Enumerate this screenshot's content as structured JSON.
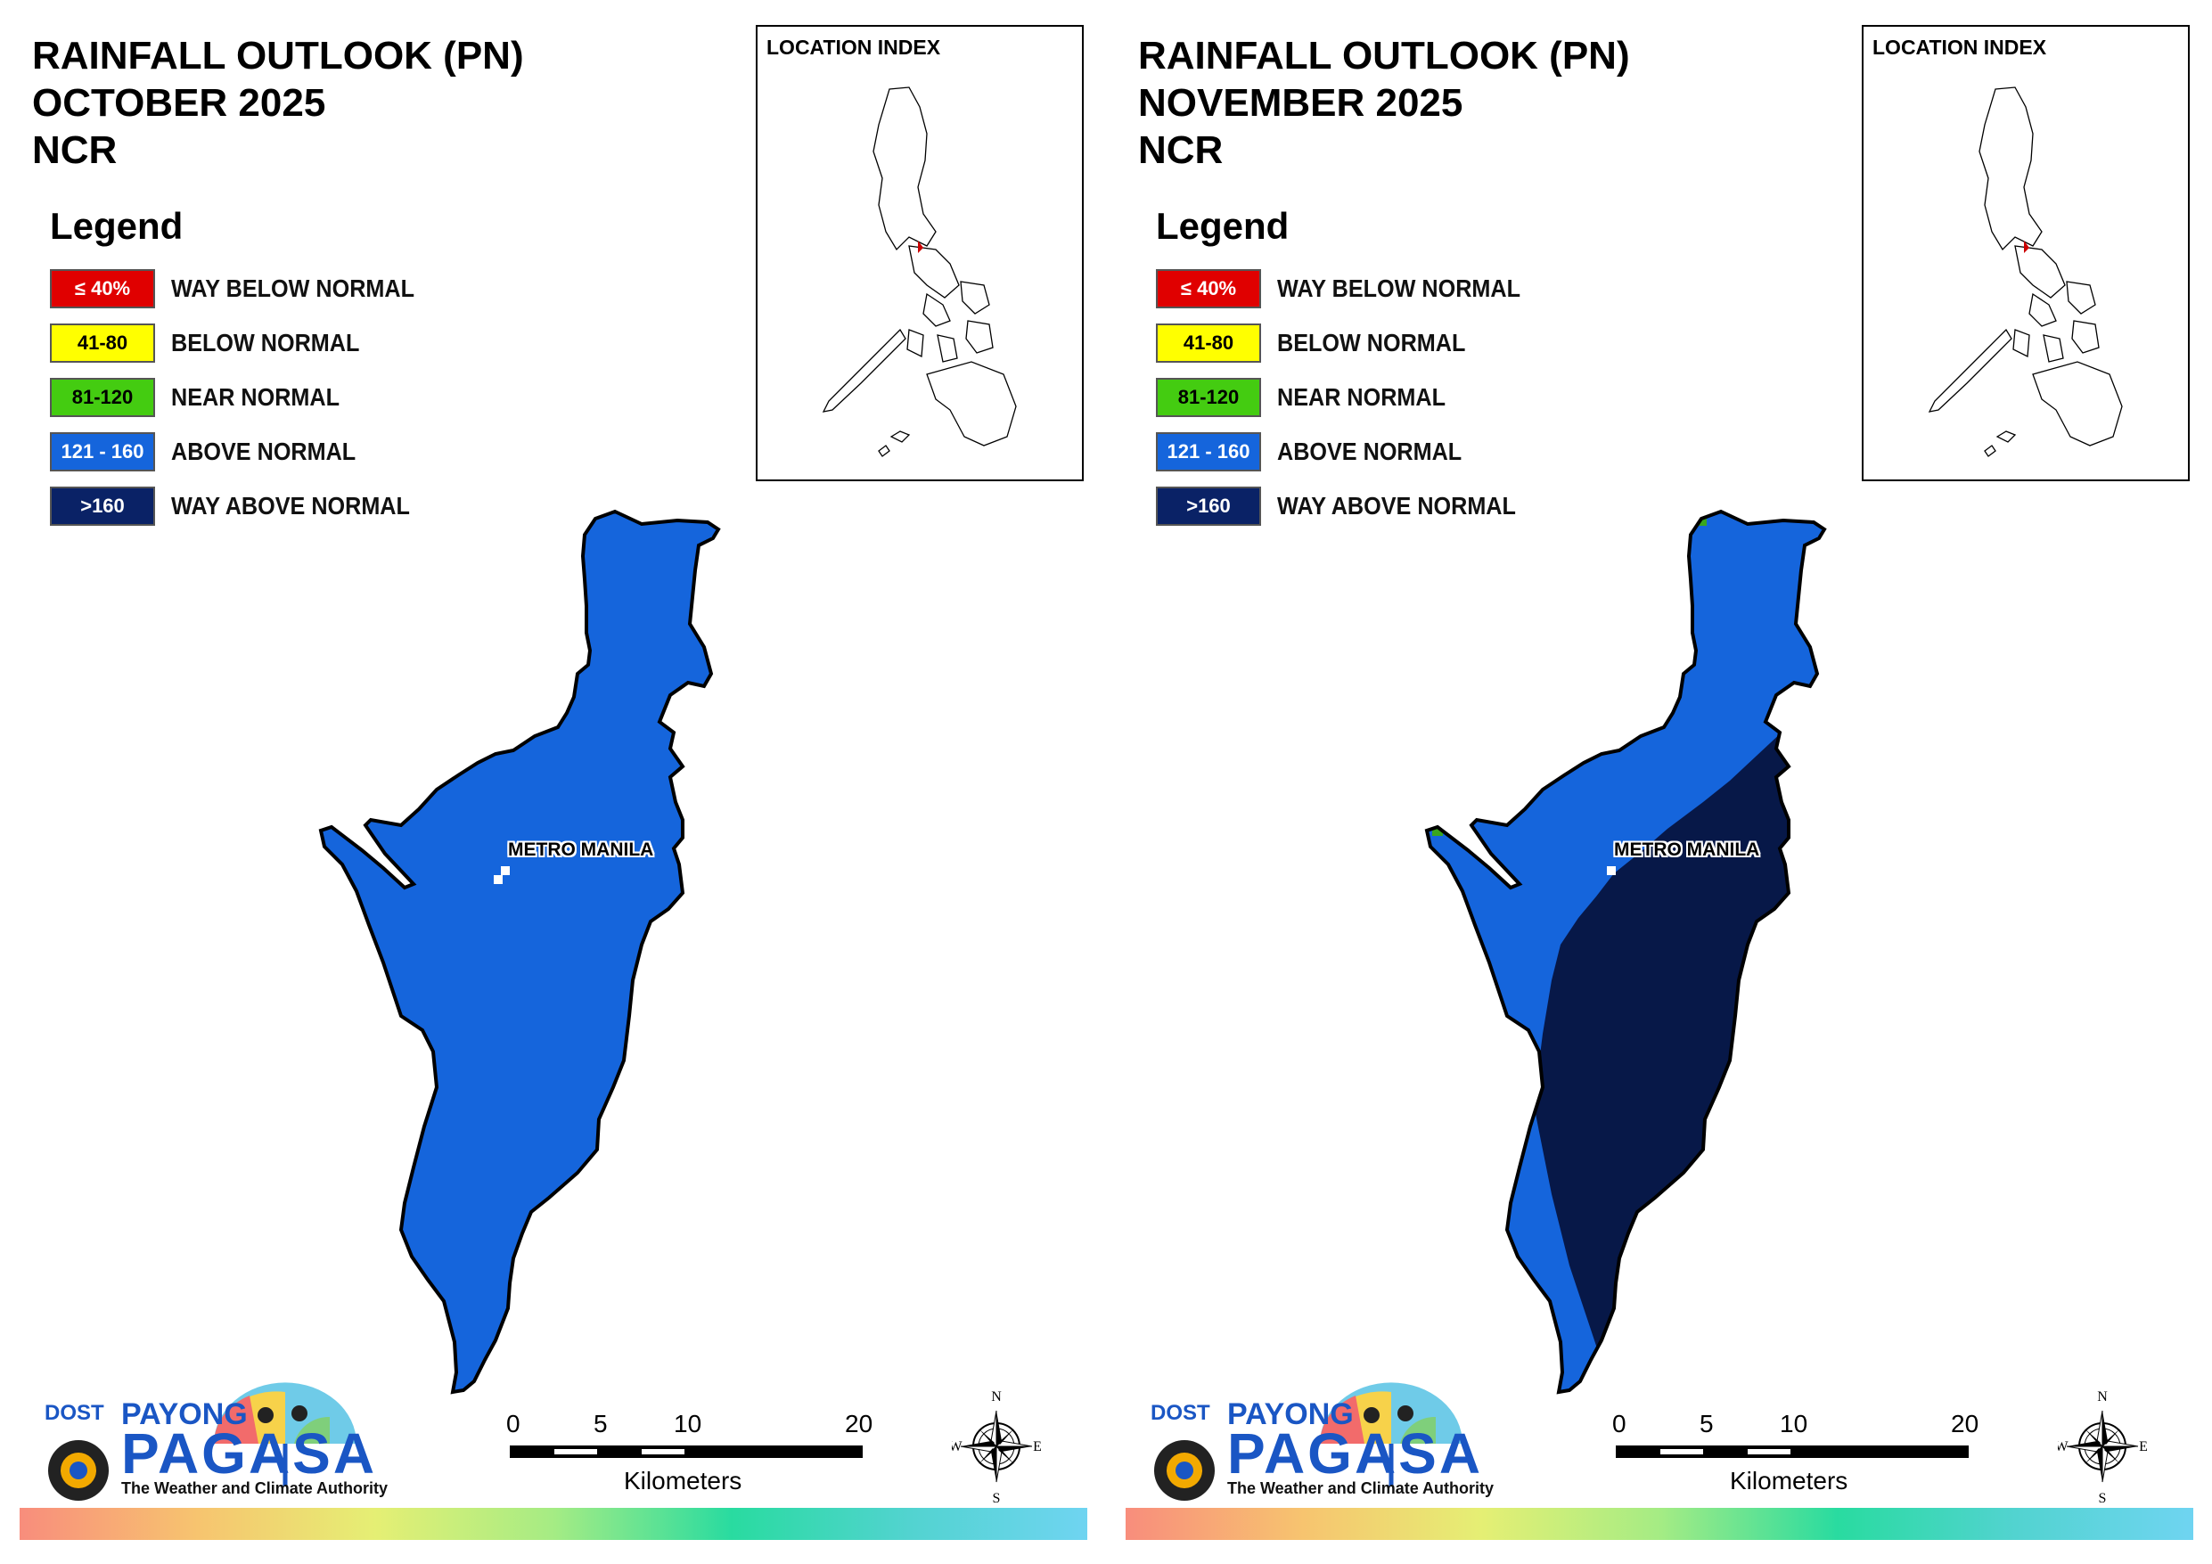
{
  "panels": [
    {
      "title_line1": "RAINFALL OUTLOOK (PN)",
      "title_line2": "OCTOBER 2025",
      "title_line3": "NCR",
      "legend_title": "Legend",
      "location_index": "LOCATION INDEX",
      "place_label": "METRO MANILA",
      "map_fill": "above-normal"
    },
    {
      "title_line1": "RAINFALL OUTLOOK (PN)",
      "title_line2": "NOVEMBER 2025",
      "title_line3": "NCR",
      "legend_title": "Legend",
      "location_index": "LOCATION INDEX",
      "place_label": "METRO MANILA",
      "map_fill": "mixed: above-normal north-west, way-above-normal south-east, near-normal specks on north coast"
    }
  ],
  "legend": [
    {
      "range": "≤ 40%",
      "label": "WAY BELOW NORMAL",
      "color": "#e00000",
      "text_color": "#ffffff"
    },
    {
      "range": "41-80",
      "label": "BELOW NORMAL",
      "color": "#ffff00",
      "text_color": "#000000"
    },
    {
      "range": "81-120",
      "label": "NEAR NORMAL",
      "color": "#44cc11",
      "text_color": "#000000"
    },
    {
      "range": "121 - 160",
      "label": "ABOVE NORMAL",
      "color": "#1565dc",
      "text_color": "#ffffff"
    },
    {
      "range": ">160",
      "label": "WAY ABOVE NORMAL",
      "color": "#0a2266",
      "text_color": "#ffffff"
    }
  ],
  "map_colors": {
    "above_normal": "#1565dc",
    "way_above_normal": "#071848",
    "near_normal": "#3aa61e"
  },
  "scalebar": {
    "ticks": [
      "0",
      "5",
      "10",
      "20"
    ],
    "unit": "Kilometers"
  },
  "compass": {
    "n": "N",
    "s": "S",
    "e": "E",
    "w": "W"
  },
  "logo": {
    "dost": "DOST",
    "payong": "PAYONG",
    "pagasa": "PAGASA",
    "tagline": "The Weather and Climate Authority"
  }
}
